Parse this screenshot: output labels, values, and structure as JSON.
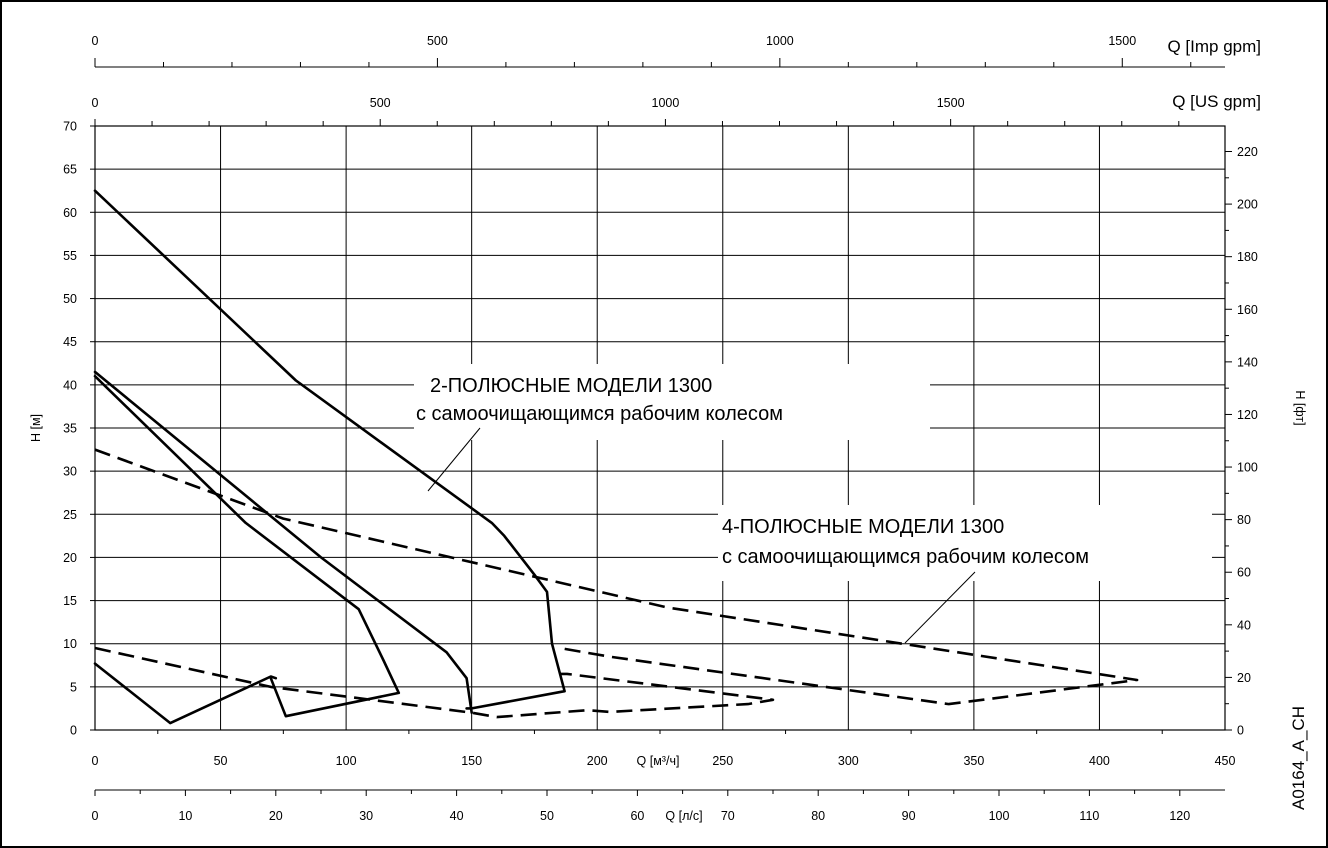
{
  "chart_data": {
    "type": "line",
    "axes": {
      "x_main": {
        "label": "Q [м³/ч]",
        "range": [
          0,
          450
        ],
        "ticks": [
          "0",
          "50",
          "100",
          "150",
          "200",
          "250",
          "300",
          "350",
          "400",
          "450"
        ],
        "grid": true
      },
      "x_ls": {
        "label": "Q [л/с]",
        "range": [
          0,
          125
        ],
        "ticks": [
          "0",
          "10",
          "20",
          "30",
          "40",
          "50",
          "60",
          "70",
          "80",
          "90",
          "100",
          "110",
          "120"
        ]
      },
      "x_usgpm": {
        "label": "Q [US gpm]",
        "range": [
          0,
          1981
        ],
        "ticks": [
          "0",
          "500",
          "1000",
          "1500"
        ]
      },
      "x_impgpm": {
        "label": "Q [Imp gpm]",
        "range": [
          0,
          1650
        ],
        "ticks": [
          "0",
          "500",
          "1000",
          "1500"
        ]
      },
      "y_left": {
        "label": "H [м]",
        "range": [
          0,
          70
        ],
        "ticks": [
          "0",
          "5",
          "10",
          "15",
          "20",
          "25",
          "30",
          "35",
          "40",
          "45",
          "50",
          "55",
          "60",
          "65",
          "70"
        ],
        "grid": true
      },
      "y_right": {
        "label": "H [фт]",
        "range": [
          0,
          229.7
        ],
        "ticks": [
          "0",
          "20",
          "40",
          "60",
          "80",
          "100",
          "120",
          "140",
          "160",
          "180",
          "200",
          "220"
        ]
      }
    },
    "series": [
      {
        "group": "2-pole",
        "style": "solid",
        "x": [
          0,
          80,
          158,
          163,
          175,
          180,
          182,
          187,
          150,
          148
        ],
        "y": [
          62.5,
          40.5,
          24,
          22.5,
          18,
          16,
          10,
          4.5,
          2.5,
          2.5
        ]
      },
      {
        "group": "2-pole",
        "style": "solid",
        "x": [
          0,
          90,
          140,
          148,
          150
        ],
        "y": [
          41.5,
          20,
          9,
          6,
          2
        ]
      },
      {
        "group": "2-pole",
        "style": "solid",
        "x": [
          0,
          60,
          105,
          115,
          121,
          76,
          70
        ],
        "y": [
          41,
          24,
          14,
          8,
          4.3,
          1.6,
          6
        ]
      },
      {
        "group": "2-pole",
        "style": "solid",
        "x": [
          0,
          30,
          70,
          72
        ],
        "y": [
          7.7,
          0.8,
          6.2,
          6
        ]
      },
      {
        "group": "4-pole",
        "style": "dashed",
        "x": [
          0,
          75,
          228,
          415,
          340,
          205,
          185
        ],
        "y": [
          32.5,
          24.5,
          14.2,
          5.8,
          3,
          8.5,
          9.5
        ]
      },
      {
        "group": "4-pole",
        "style": "dashed",
        "x": [
          0,
          70,
          150,
          160,
          196,
          205,
          260,
          270,
          188,
          185
        ],
        "y": [
          9.5,
          5,
          2,
          1.5,
          2.3,
          2.1,
          3,
          3.5,
          6.5,
          6.5
        ]
      }
    ],
    "annotations": [
      {
        "line1": "2-ПОЛЮСНЫЕ МОДЕЛИ 1300",
        "line2": "с самоочищающимся рабочим колесом"
      },
      {
        "line1": "4-ПОЛЮСНЫЕ МОДЕЛИ 1300",
        "line2": "с самоочищающимся рабочим колесом"
      }
    ],
    "figure_id": "A0164_A_CH"
  }
}
